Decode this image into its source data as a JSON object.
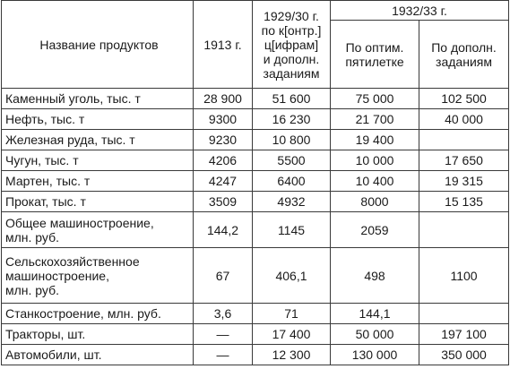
{
  "table": {
    "headers": {
      "name": "Название продуктов",
      "y1913": "1913 г.",
      "y1929": "1929/30 г.\nпо к[онтр.]\nц[ифрам]\nи дополн.\nзаданиям",
      "y1932": "1932/33 г.",
      "y1932_optimal": "По оптим.\nпятилетке",
      "y1932_additional": "По дополн.\nзаданиям"
    },
    "rows": [
      {
        "name": "Каменный уголь, тыс. т",
        "y1913": "28 900",
        "y1929": "51 600",
        "opt": "75 000",
        "add": "102 500"
      },
      {
        "name": "Нефть, тыс. т",
        "y1913": "9300",
        "y1929": "16 230",
        "opt": "21 700",
        "add": "40 000"
      },
      {
        "name": "Железная руда, тыс. т",
        "y1913": "9230",
        "y1929": "10 800",
        "opt": "19 400",
        "add": ""
      },
      {
        "name": "Чугун, тыс. т",
        "y1913": "4206",
        "y1929": "5500",
        "opt": "10 000",
        "add": "17 650"
      },
      {
        "name": "Мартен, тыс. т",
        "y1913": "4247",
        "y1929": "6400",
        "opt": "10 400",
        "add": "19 315"
      },
      {
        "name": "Прокат, тыс. т",
        "y1913": "3509",
        "y1929": "4932",
        "opt": "8000",
        "add": "15 135"
      },
      {
        "name": "Общее машиностроение,\nмлн. руб.",
        "y1913": "144,2",
        "y1929": "1145",
        "opt": "2059",
        "add": ""
      },
      {
        "name": "Сельскохозяйственное\nмашиностроение,\nмлн. руб.",
        "y1913": "67",
        "y1929": "406,1",
        "opt": "498",
        "add": "1100"
      },
      {
        "name": "Станкостроение, млн. руб.",
        "y1913": "3,6",
        "y1929": "71",
        "opt": "144,1",
        "add": ""
      },
      {
        "name": "Тракторы, шт.",
        "y1913": "—",
        "y1929": "17 400",
        "opt": "50 000",
        "add": "197 100"
      },
      {
        "name": "Автомобили, шт.",
        "y1913": "—",
        "y1929": "12 300",
        "opt": "130 000",
        "add": "350 000"
      }
    ]
  }
}
